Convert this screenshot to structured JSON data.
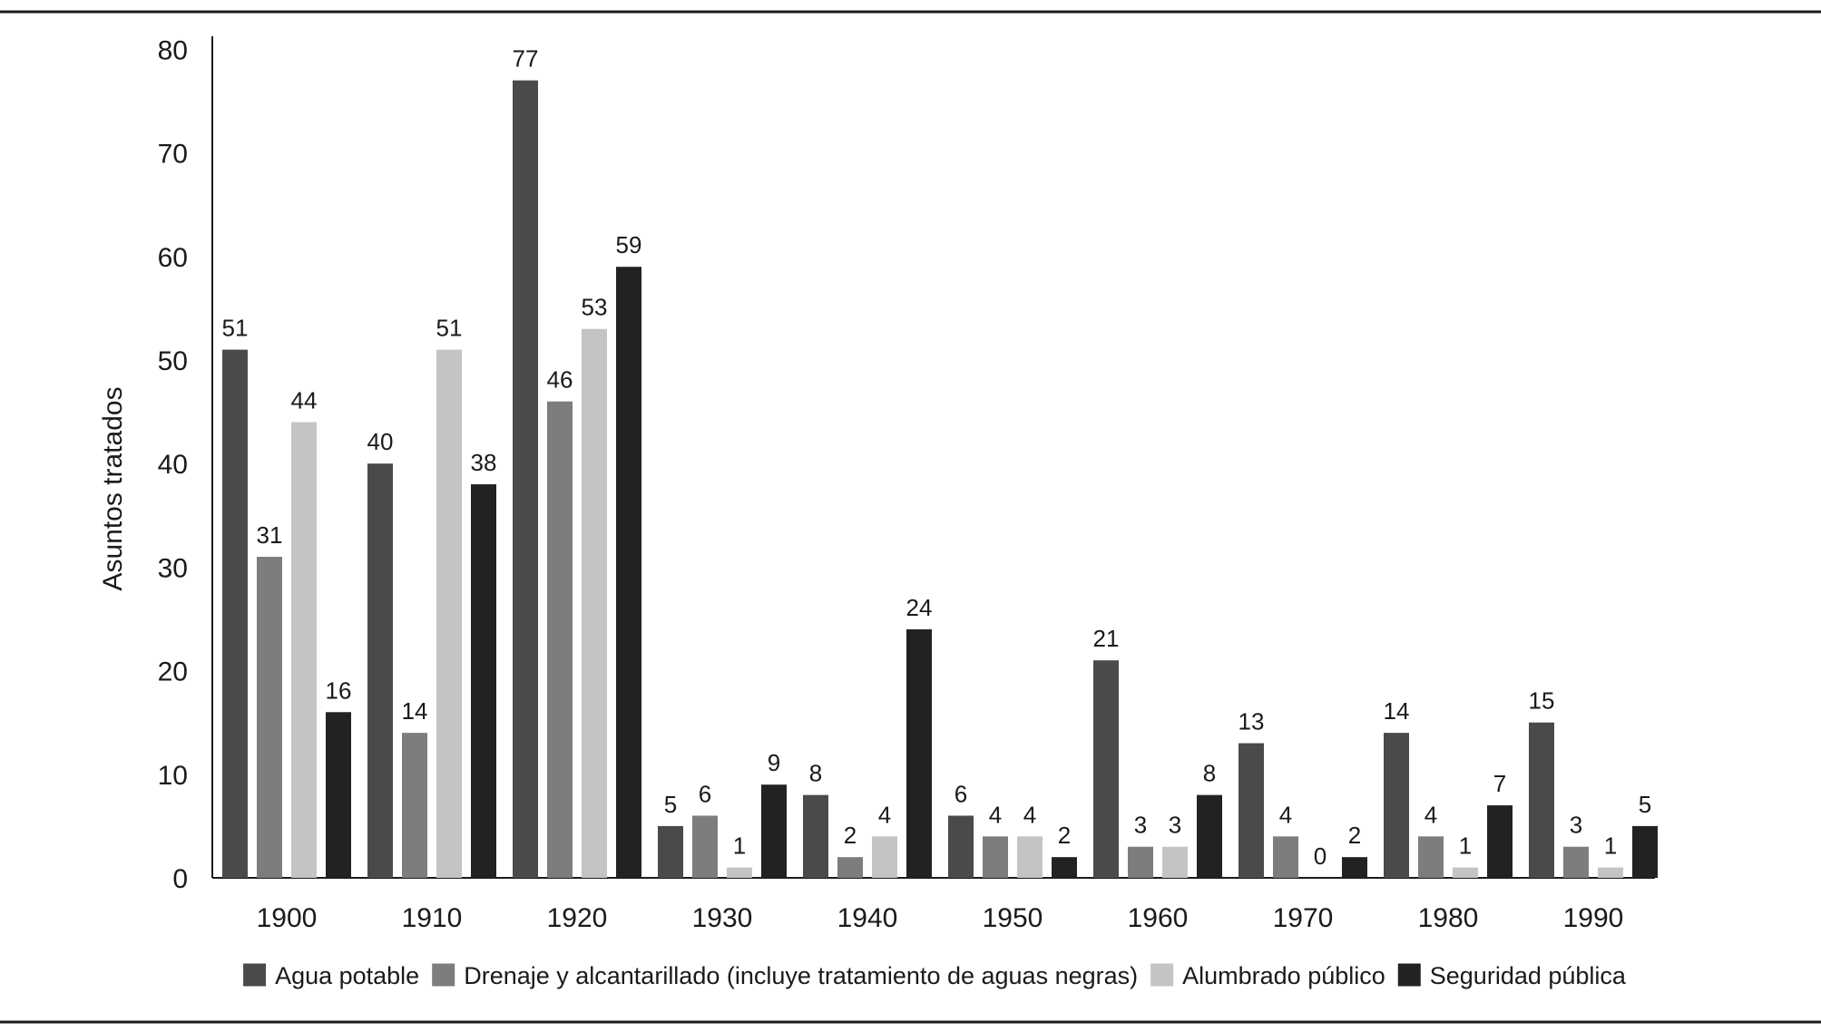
{
  "chart_data": {
    "type": "bar",
    "title": "",
    "xlabel": "",
    "ylabel": "Asuntos tratados",
    "ylim": [
      0,
      80
    ],
    "yticks": [
      0,
      10,
      20,
      30,
      40,
      50,
      60,
      70,
      80
    ],
    "grid": false,
    "legend_position": "bottom",
    "categories": [
      "1900",
      "1910",
      "1920",
      "1930",
      "1940",
      "1950",
      "1960",
      "1970",
      "1980",
      "1990"
    ],
    "series": [
      {
        "name": "Agua potable",
        "color": "#4a4a4a",
        "values": [
          51,
          40,
          77,
          5,
          8,
          6,
          21,
          13,
          14,
          15
        ]
      },
      {
        "name": "Drenaje y alcantarillado (incluye tratamiento de aguas negras)",
        "color": "#7d7d7d",
        "values": [
          31,
          14,
          46,
          6,
          2,
          4,
          3,
          4,
          4,
          3
        ]
      },
      {
        "name": "Alumbrado público",
        "color": "#c4c4c4",
        "values": [
          44,
          51,
          53,
          1,
          4,
          4,
          3,
          0,
          1,
          1
        ]
      },
      {
        "name": "Seguridad pública",
        "color": "#222222",
        "values": [
          16,
          38,
          59,
          9,
          24,
          2,
          8,
          2,
          7,
          5
        ]
      }
    ]
  }
}
